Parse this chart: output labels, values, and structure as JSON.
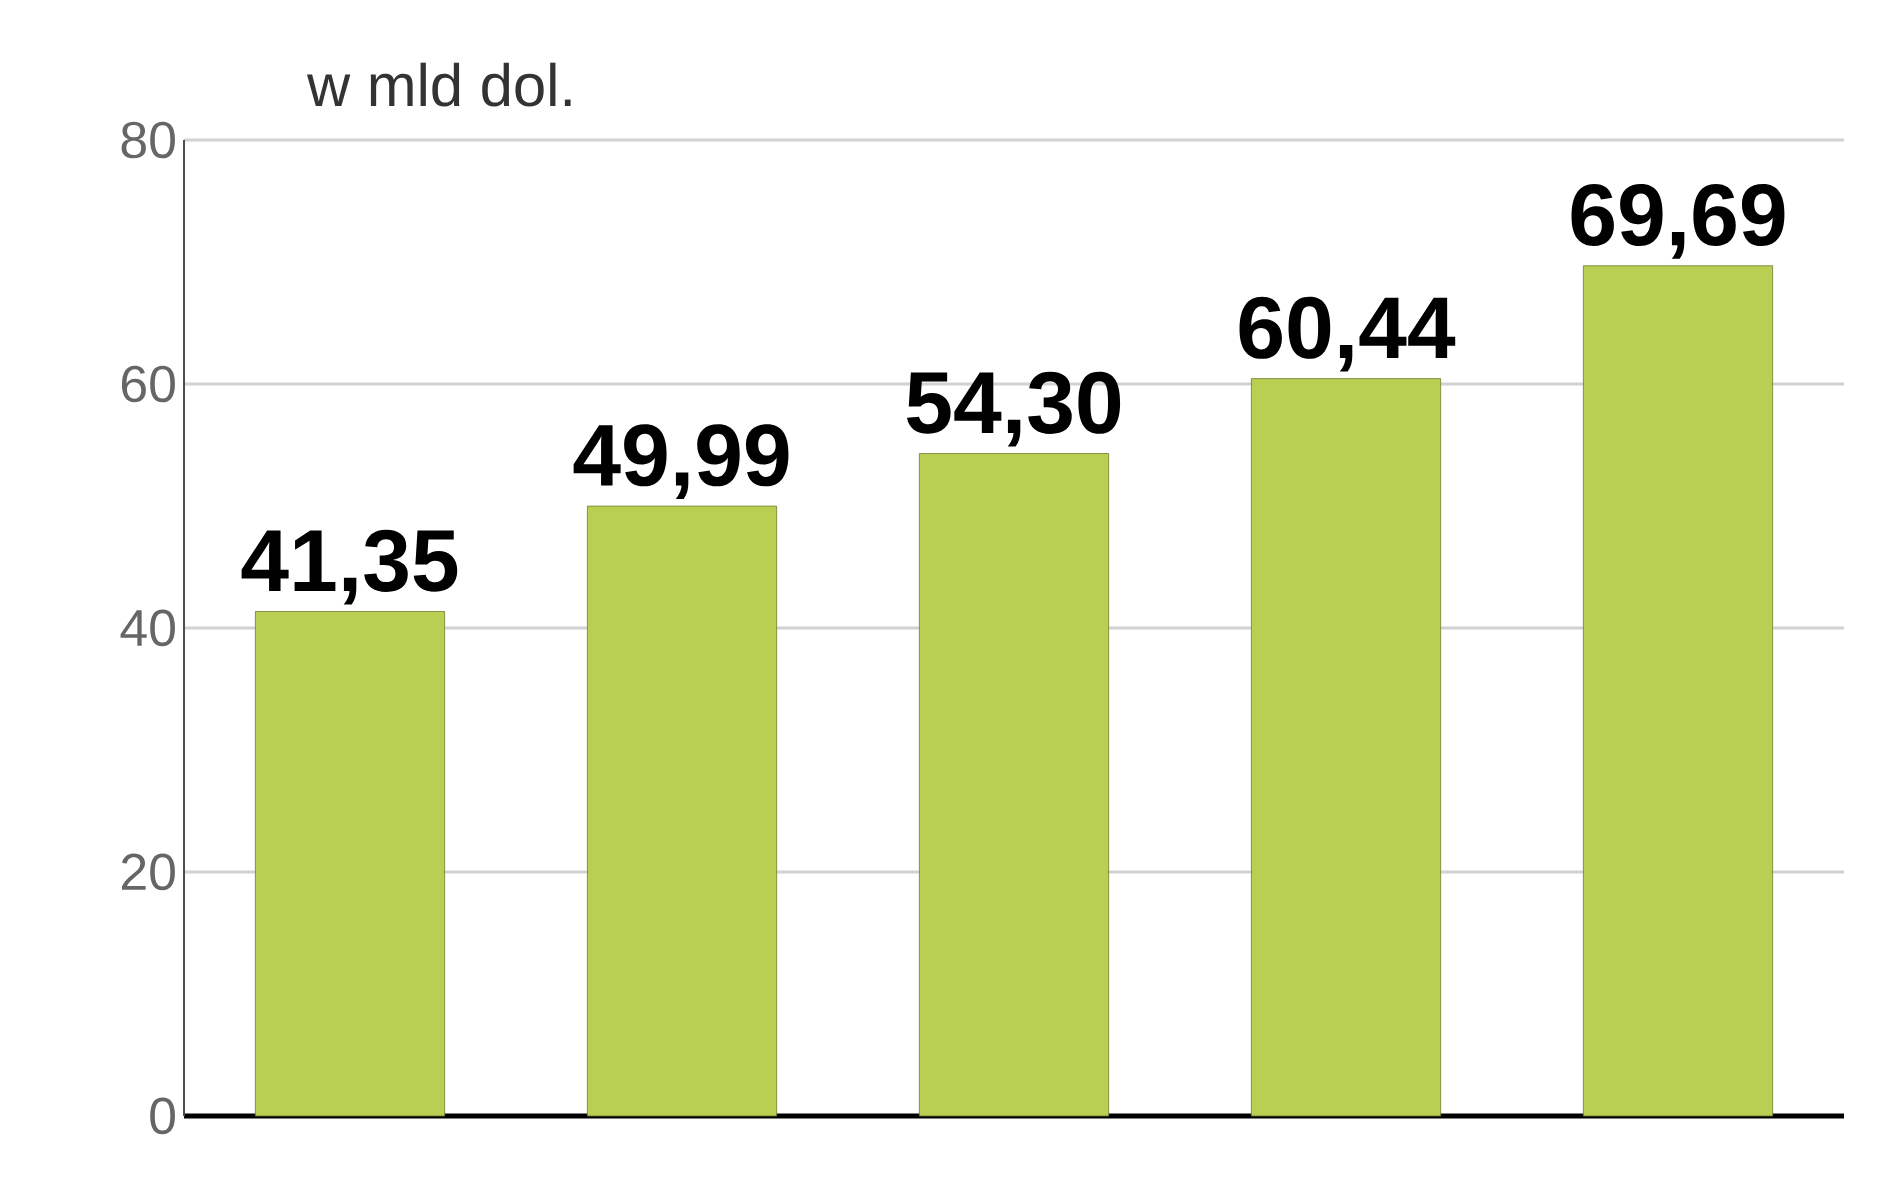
{
  "chart_data": {
    "type": "bar",
    "title": "w mld dol.",
    "categories": [
      null,
      null,
      null,
      null,
      null
    ],
    "values": [
      41.35,
      49.99,
      54.3,
      60.44,
      69.69
    ],
    "value_labels": [
      "41,35",
      "49,99",
      "54,30",
      "60,44",
      "69,69"
    ],
    "color": "#b8cf52",
    "ylim": [
      0,
      80
    ],
    "yticks": [
      0,
      20,
      40,
      60,
      80
    ],
    "grid": "y"
  }
}
